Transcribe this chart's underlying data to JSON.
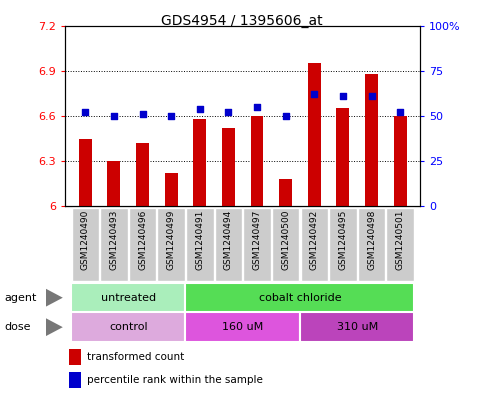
{
  "title": "GDS4954 / 1395606_at",
  "samples": [
    "GSM1240490",
    "GSM1240493",
    "GSM1240496",
    "GSM1240499",
    "GSM1240491",
    "GSM1240494",
    "GSM1240497",
    "GSM1240500",
    "GSM1240492",
    "GSM1240495",
    "GSM1240498",
    "GSM1240501"
  ],
  "transformed_count": [
    6.45,
    6.3,
    6.42,
    6.22,
    6.58,
    6.52,
    6.6,
    6.18,
    6.95,
    6.65,
    6.88,
    6.6
  ],
  "percentile_rank": [
    52,
    50,
    51,
    50,
    54,
    52,
    55,
    50,
    62,
    61,
    61,
    52
  ],
  "bar_color": "#cc0000",
  "dot_color": "#0000cc",
  "ylim_left": [
    6.0,
    7.2
  ],
  "ylim_right": [
    0,
    100
  ],
  "yticks_left": [
    6.0,
    6.3,
    6.6,
    6.9,
    7.2
  ],
  "ytick_labels_left": [
    "6",
    "6.3",
    "6.6",
    "6.9",
    "7.2"
  ],
  "yticks_right": [
    0,
    25,
    50,
    75,
    100
  ],
  "ytick_labels_right": [
    "0",
    "25",
    "50",
    "75",
    "100%"
  ],
  "agent_groups": [
    {
      "label": "untreated",
      "start": 0,
      "end": 4,
      "color": "#aaeebb"
    },
    {
      "label": "cobalt chloride",
      "start": 4,
      "end": 12,
      "color": "#55dd55"
    }
  ],
  "dose_groups": [
    {
      "label": "control",
      "start": 0,
      "end": 4,
      "color": "#ddaadd"
    },
    {
      "label": "160 uM",
      "start": 4,
      "end": 8,
      "color": "#dd55dd"
    },
    {
      "label": "310 uM",
      "start": 8,
      "end": 12,
      "color": "#bb44bb"
    }
  ],
  "legend_bar_label": "transformed count",
  "legend_dot_label": "percentile rank within the sample",
  "agent_label": "agent",
  "dose_label": "dose",
  "base_value": 6.0,
  "background_color": "#ffffff",
  "plot_bg_color": "#ffffff",
  "sample_box_color": "#cccccc",
  "sample_box_edge_color": "#ffffff",
  "bar_width": 0.45
}
